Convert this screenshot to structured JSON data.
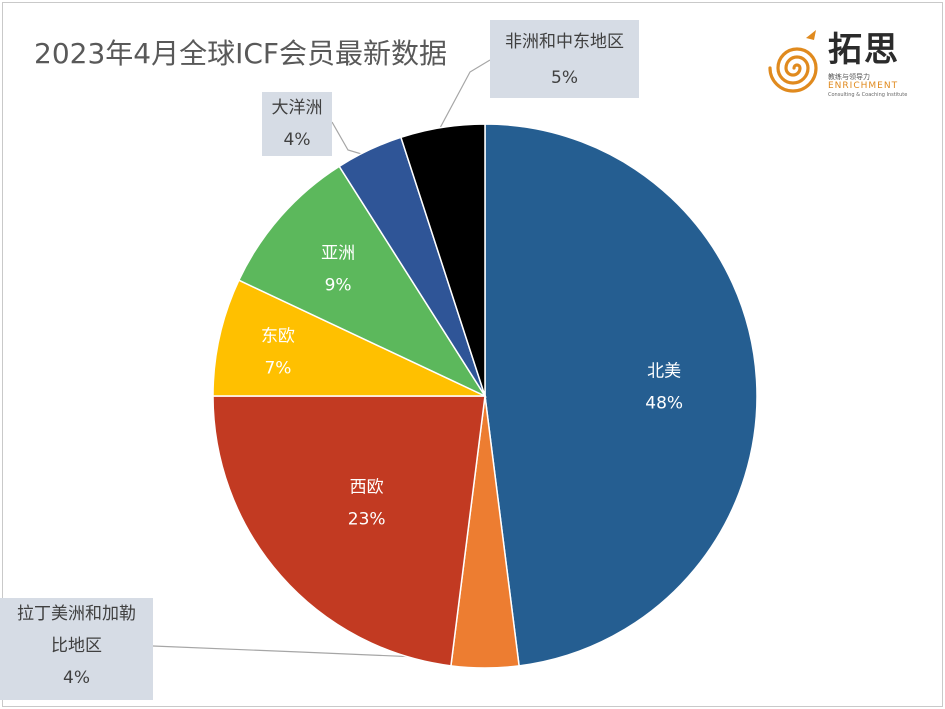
{
  "title": "2023年4月全球ICF会员最新数据",
  "logo": {
    "name_cn": "拓思",
    "sub_cn": "教练与领导力",
    "name_en": "ENRICHMENT",
    "tagline_en": "Consulting & Coaching Institute",
    "color_orange": "#e08a1e"
  },
  "chart_data": {
    "type": "pie",
    "title": "2023年4月全球ICF会员最新数据",
    "start_angle": "12 o'clock, clockwise",
    "slices": [
      {
        "label": "北美",
        "value": 48,
        "pct_label": "48%",
        "color": "#255e91"
      },
      {
        "label": "拉丁美洲和加勒比地区",
        "value": 4,
        "pct_label": "4%",
        "color": "#ed7d31"
      },
      {
        "label": "西欧",
        "value": 23,
        "pct_label": "23%",
        "color": "#c23a22"
      },
      {
        "label": "东欧",
        "value": 7,
        "pct_label": "7%",
        "color": "#ffc000"
      },
      {
        "label": "亚洲",
        "value": 9,
        "pct_label": "9%",
        "color": "#5cb85c"
      },
      {
        "label": "大洋洲",
        "value": 4,
        "pct_label": "4%",
        "color": "#2f5597"
      },
      {
        "label": "非洲和中东地区",
        "value": 5,
        "pct_label": "5%",
        "color": "#000000"
      }
    ],
    "callouts": {
      "latam_line1": "拉丁美洲和加勒",
      "latam_line2": "比地区",
      "latam_pct": "4%",
      "oceania_line1": "大洋洲",
      "oceania_pct": "4%",
      "mea_line1": "非洲和中东地区",
      "mea_pct": "5%"
    }
  }
}
